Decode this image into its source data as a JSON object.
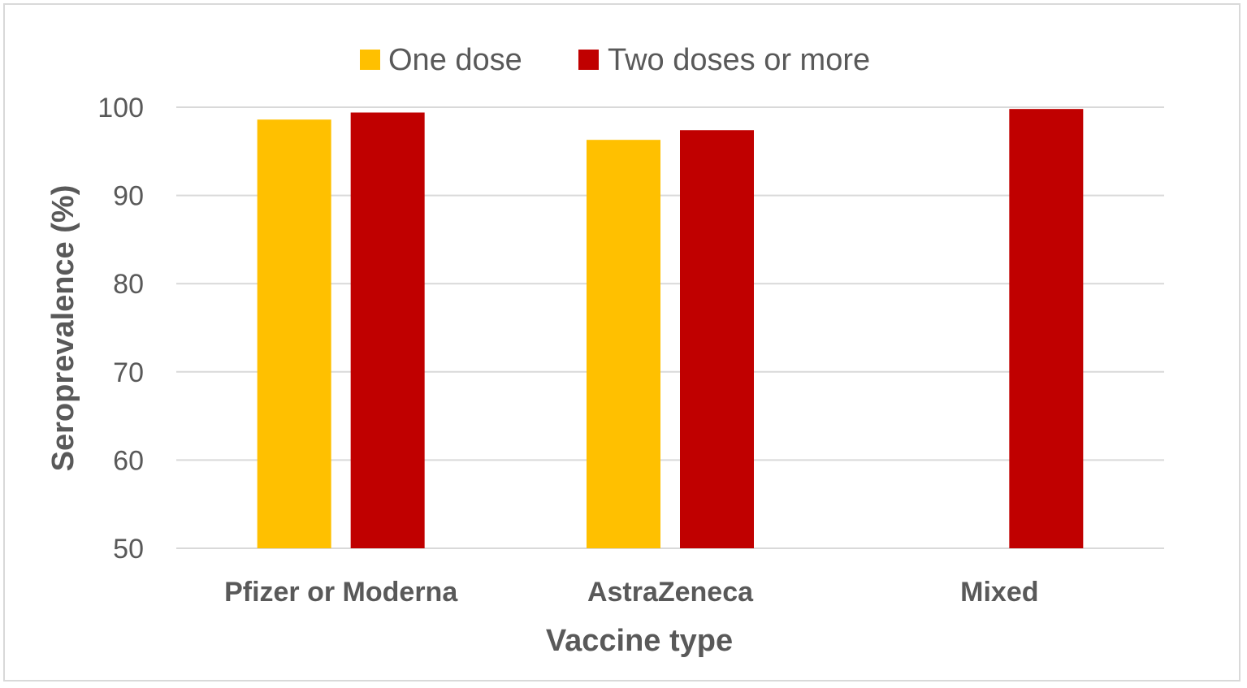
{
  "chart_data": {
    "type": "bar",
    "categories": [
      "Pfizer or Moderna",
      "AstraZeneca",
      "Mixed"
    ],
    "series": [
      {
        "name": "One dose",
        "color": "#FFC000",
        "values": [
          98.6,
          96.3,
          null
        ]
      },
      {
        "name": "Two doses or more",
        "color": "#C00000",
        "values": [
          99.4,
          97.4,
          99.8
        ]
      }
    ],
    "xlabel": "Vaccine type",
    "ylabel": "Seroprevalence (%)",
    "ylim": [
      50,
      100
    ],
    "yticks": [
      50,
      60,
      70,
      80,
      90,
      100
    ],
    "grid": true,
    "legend": "top-center"
  }
}
